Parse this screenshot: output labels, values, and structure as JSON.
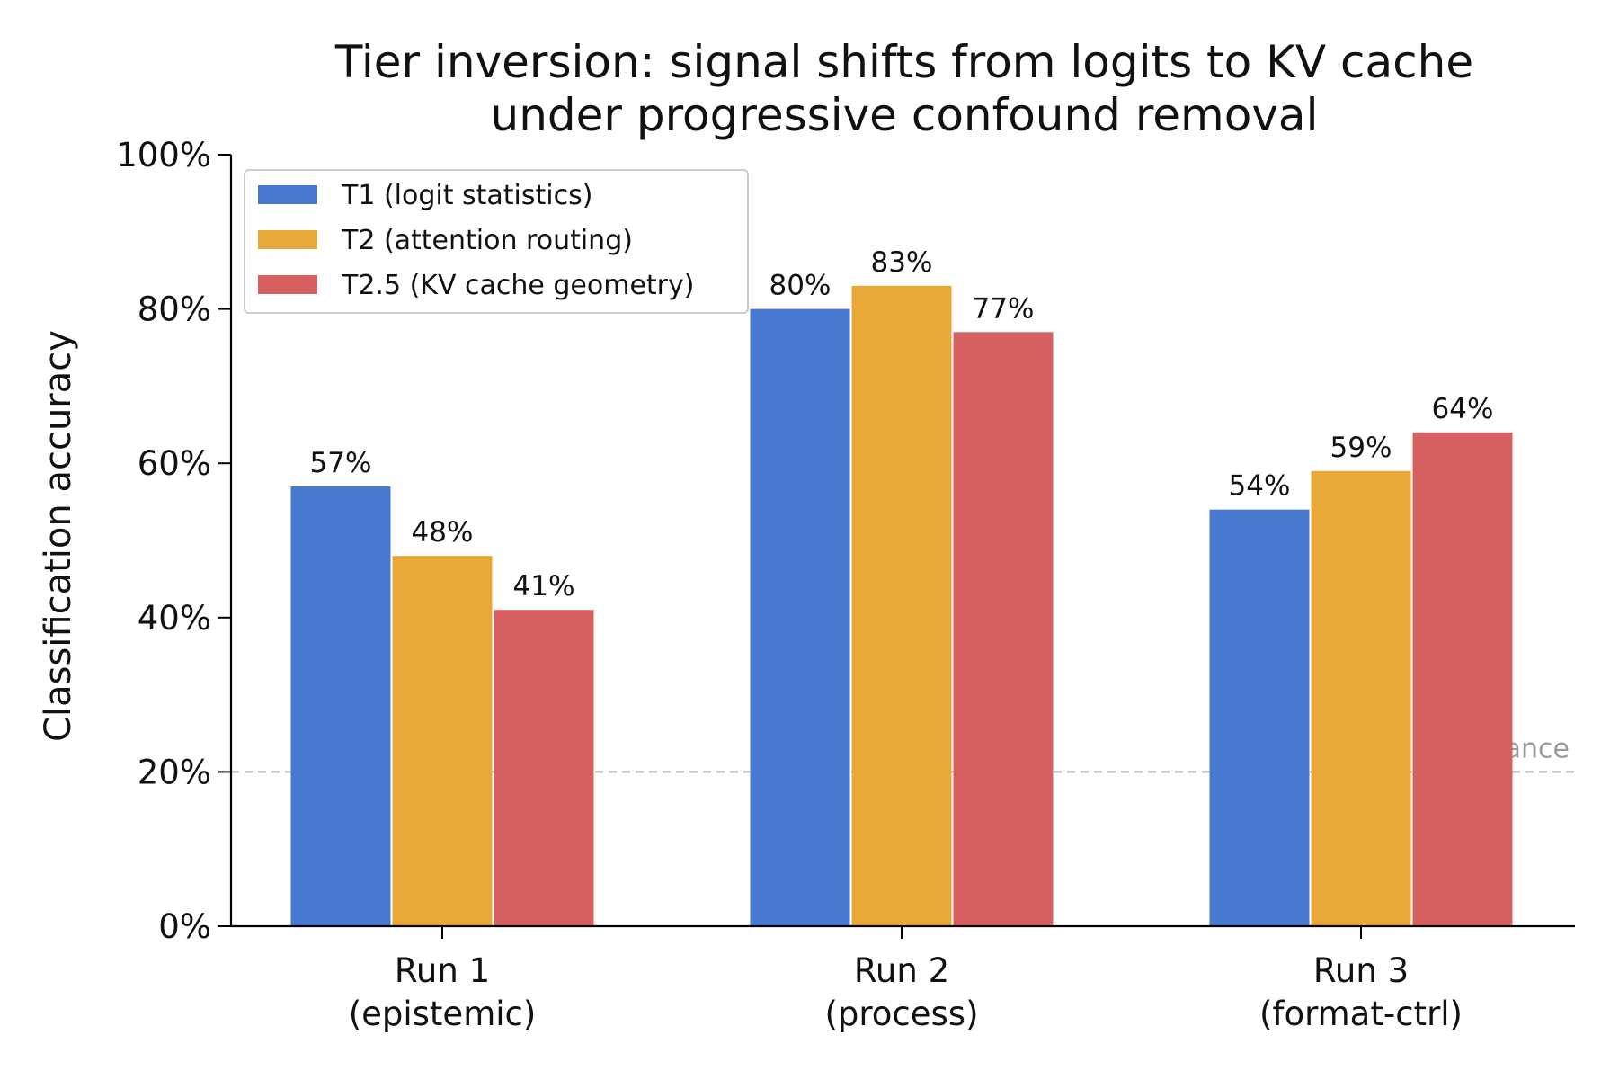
{
  "chart_data": {
    "type": "bar",
    "title": "Tier inversion: signal shifts from logits to KV cache",
    "subtitle": "under progressive confound removal",
    "xlabel": "",
    "ylabel": "Classification accuracy",
    "ylim": [
      0,
      100
    ],
    "yticks": [
      0,
      20,
      40,
      60,
      80,
      100
    ],
    "ytick_labels": [
      "0%",
      "20%",
      "40%",
      "60%",
      "80%",
      "100%"
    ],
    "categories": [
      {
        "line1": "Run 1",
        "line2": "(epistemic)"
      },
      {
        "line1": "Run 2",
        "line2": "(process)"
      },
      {
        "line1": "Run 3",
        "line2": "(format-ctrl)"
      }
    ],
    "series": [
      {
        "name": "T1 (logit statistics)",
        "color": "#4878cf",
        "values": [
          57,
          80,
          54
        ],
        "labels": [
          "57%",
          "80%",
          "54%"
        ]
      },
      {
        "name": "T2 (attention routing)",
        "color": "#e8a838",
        "values": [
          48,
          83,
          59
        ],
        "labels": [
          "48%",
          "83%",
          "59%"
        ]
      },
      {
        "name": "T2.5 (KV cache geometry)",
        "color": "#d65f5f",
        "values": [
          41,
          77,
          64
        ],
        "labels": [
          "41%",
          "77%",
          "64%"
        ]
      }
    ],
    "reference_line": {
      "value": 20,
      "label": "chance",
      "color": "#b0b0b0"
    },
    "legend_position": "top-left",
    "grid": false
  }
}
